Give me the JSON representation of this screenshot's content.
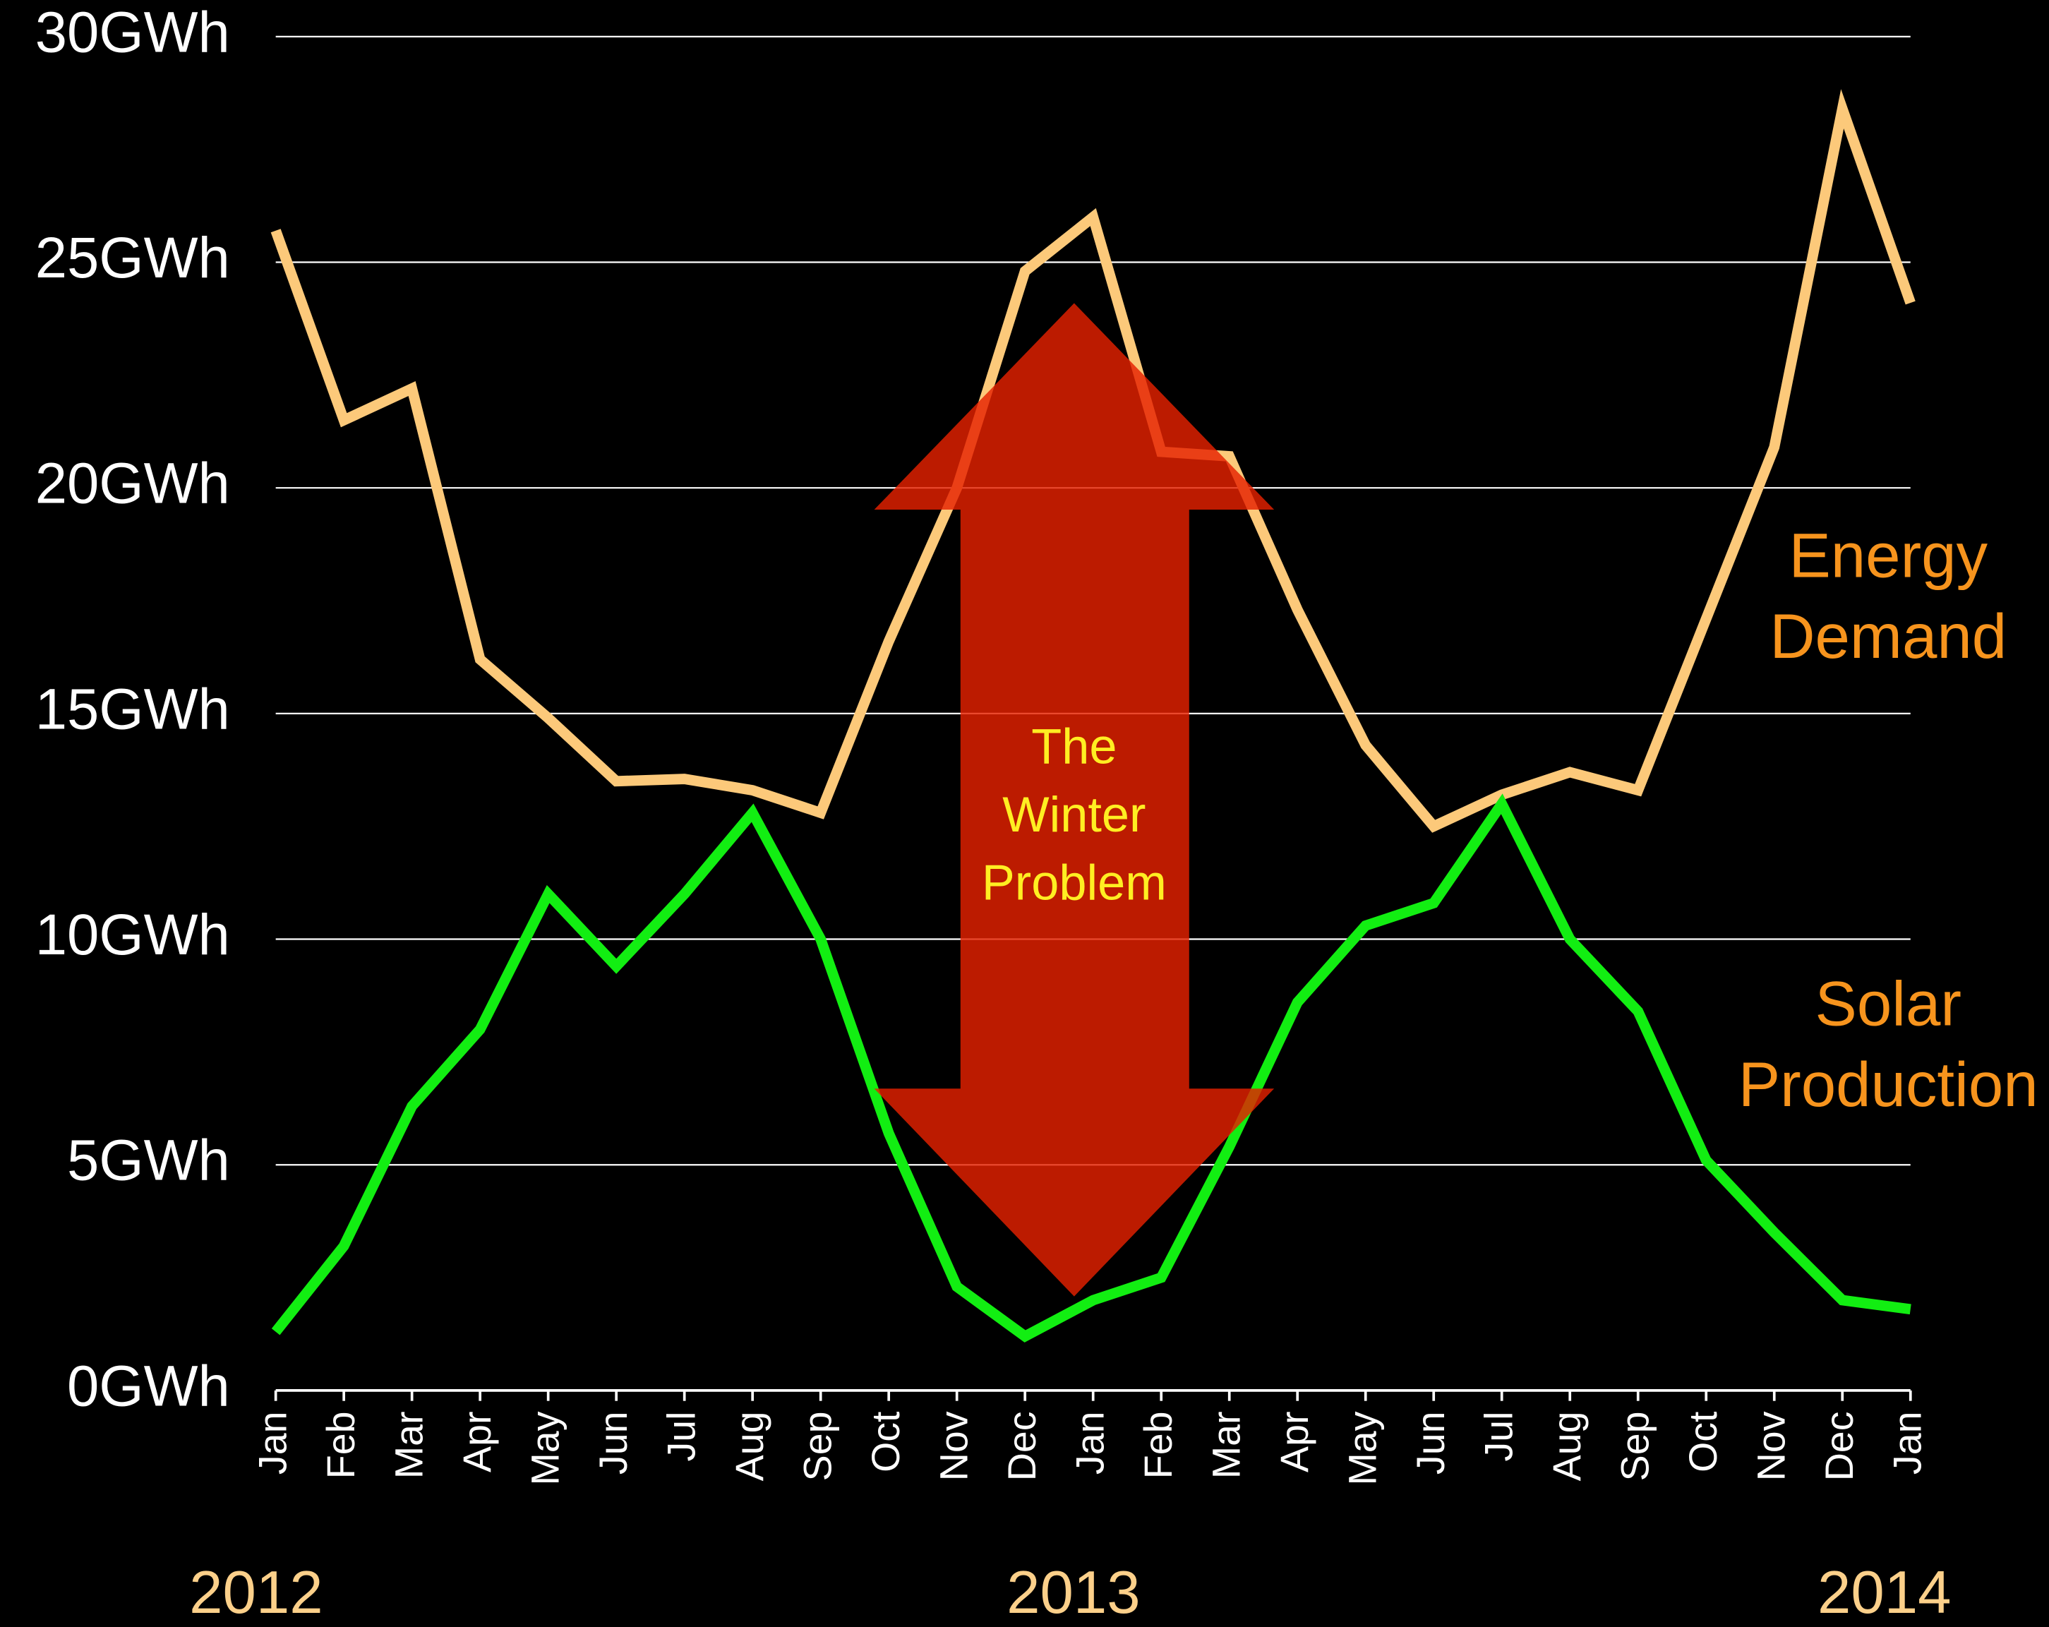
{
  "chart_data": {
    "type": "line",
    "categories": [
      "Jan",
      "Feb",
      "Mar",
      "Apr",
      "May",
      "Jun",
      "Jul",
      "Aug",
      "Sep",
      "Oct",
      "Nov",
      "Dec",
      "Jan",
      "Feb",
      "Mar",
      "Apr",
      "May",
      "Jun",
      "Jul",
      "Aug",
      "Sep",
      "Oct",
      "Nov",
      "Dec",
      "Jan"
    ],
    "year_labels": [
      "2012",
      "2013",
      "2014"
    ],
    "series": [
      {
        "name": "Energy Demand",
        "color": "#fcc97a",
        "values": [
          25.7,
          21.5,
          22.2,
          16.2,
          14.9,
          13.5,
          13.55,
          13.3,
          12.8,
          16.6,
          20.0,
          24.8,
          26.0,
          20.8,
          20.7,
          17.3,
          14.3,
          12.5,
          13.2,
          13.7,
          13.3,
          17.1,
          20.9,
          28.4,
          24.1
        ]
      },
      {
        "name": "Solar Production",
        "color": "#12ee12",
        "values": [
          1.3,
          3.2,
          6.3,
          8.0,
          11.0,
          9.4,
          11.0,
          12.8,
          10.0,
          5.7,
          2.3,
          1.2,
          2.0,
          2.5,
          5.4,
          8.6,
          10.3,
          10.8,
          13.0,
          10.0,
          8.4,
          5.1,
          3.5,
          2.0,
          1.8
        ]
      }
    ],
    "annotation": "The Winter Problem",
    "ylim": [
      0,
      30
    ],
    "yticks": [
      {
        "value": 0,
        "label": "0GWh"
      },
      {
        "value": 5,
        "label": "5GWh"
      },
      {
        "value": 10,
        "label": "10GWh"
      },
      {
        "value": 15,
        "label": "15GWh"
      },
      {
        "value": 20,
        "label": "20GWh"
      },
      {
        "value": 25,
        "label": "25GWh"
      },
      {
        "value": 30,
        "label": "30GWh"
      }
    ],
    "grid": true
  }
}
